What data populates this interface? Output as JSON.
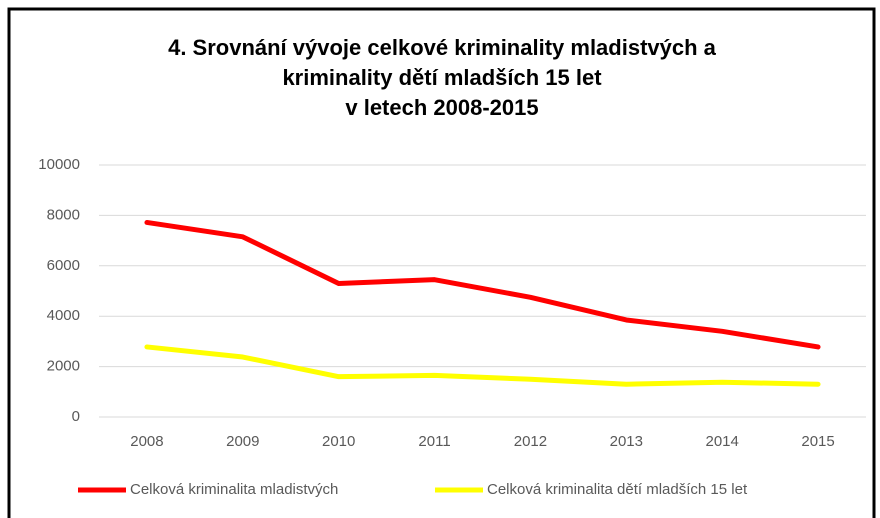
{
  "chart_data": {
    "type": "line",
    "title": [
      "4. Srovnání vývoje celkové kriminality mladistvých a",
      "kriminality dětí mladších 15 let",
      "v letech 2008-2015"
    ],
    "categories": [
      "2008",
      "2009",
      "2010",
      "2011",
      "2012",
      "2013",
      "2014",
      "2015"
    ],
    "series": [
      {
        "name": "Celková kriminalita mladistvých",
        "color": "#ff0000",
        "values": [
          7720,
          7150,
          5300,
          5450,
          4750,
          3850,
          3400,
          2780
        ]
      },
      {
        "name": "Celková kriminalita dětí mladších 15 let",
        "color": "#ffff00",
        "values": [
          2780,
          2380,
          1600,
          1650,
          1500,
          1300,
          1380,
          1300
        ]
      }
    ],
    "ylim": [
      0,
      10000
    ],
    "yticks": [
      0,
      2000,
      4000,
      6000,
      8000,
      10000
    ],
    "grid": true,
    "legend": "bottom"
  }
}
